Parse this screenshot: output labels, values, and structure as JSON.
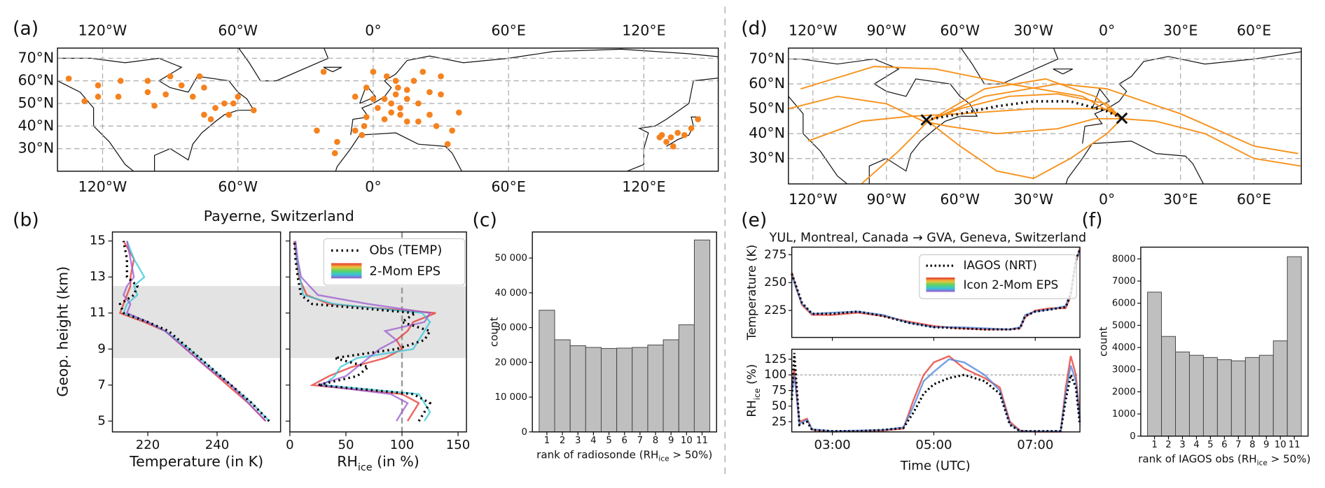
{
  "chart_data": [
    {
      "type": "map",
      "panel": "(a)",
      "xlim": [
        -140,
        153
      ],
      "ylim": [
        20,
        74.5
      ],
      "xticks": [
        {
          "value": -120,
          "label": "120°W"
        },
        {
          "value": -60,
          "label": "60°W"
        },
        {
          "value": 0,
          "label": "0°"
        },
        {
          "value": 60,
          "label": "60°E"
        },
        {
          "value": 120,
          "label": "120°E"
        }
      ],
      "yticks": [
        {
          "value": 30,
          "label": "30°N"
        },
        {
          "value": 40,
          "label": "40°N"
        },
        {
          "value": 50,
          "label": "50°N"
        },
        {
          "value": 60,
          "label": "60°N"
        },
        {
          "value": 70,
          "label": "70°N"
        }
      ],
      "color": "#f5821f",
      "x": [
        -135,
        -122,
        -122,
        -112,
        -113,
        -100,
        -97,
        -90,
        -92,
        -85,
        -80,
        -77,
        -75,
        -70,
        -66,
        -60,
        -64,
        -62,
        -75,
        -72,
        -53,
        -128,
        -100,
        -8,
        -3,
        0,
        2,
        5,
        8,
        10,
        12,
        15,
        20,
        25,
        18,
        22,
        10,
        25,
        15,
        5,
        -4,
        -8,
        -17,
        -16,
        -25,
        28,
        35,
        33,
        -3,
        12,
        20,
        30,
        -22,
        -5,
        15,
        8,
        11,
        0,
        6,
        30,
        38,
        128,
        130,
        132,
        135,
        138,
        141,
        144,
        127,
        133
      ],
      "values": [
        61,
        58,
        53,
        60,
        53,
        55,
        49,
        62,
        54,
        58,
        53,
        62,
        57,
        48,
        50,
        53,
        45,
        50,
        45,
        43,
        47,
        51,
        60,
        53,
        57,
        52,
        48,
        52,
        50,
        54,
        48,
        52,
        50,
        55,
        60,
        64,
        60,
        45,
        42,
        43,
        40,
        38,
        28,
        33,
        38,
        40,
        38,
        32,
        44,
        45,
        42,
        62,
        64,
        36,
        56,
        46,
        57,
        64,
        62,
        54,
        46,
        36,
        33,
        35,
        37,
        36,
        39,
        43,
        35,
        31
      ]
    },
    {
      "type": "profile",
      "panel": "(b)",
      "title": "Payerne, Switzerland",
      "xlabel": "Temperature (in K)",
      "ylabel": "Geop. height (km)",
      "xlim": [
        209.8,
        258.3
      ],
      "ylim": [
        4.4,
        15.5
      ],
      "xticks": [
        220,
        240
      ],
      "yticks": [
        5,
        7,
        9,
        11,
        13,
        15
      ],
      "shade": [
        8.5,
        12.5
      ],
      "heights": [
        5,
        6,
        7,
        8,
        9,
        10,
        10.5,
        11,
        11.5,
        12,
        12.5,
        13,
        14,
        15
      ],
      "series": [
        {
          "name": "Obs (TEMP)",
          "color": "#000000",
          "values": [
            255,
            250,
            244,
            238,
            232,
            226,
            220,
            213,
            212,
            216,
            217,
            214,
            214,
            213
          ]
        }
      ],
      "members": [
        {
          "color": "#e6322b",
          "values": [
            254,
            249,
            243,
            237,
            231,
            225,
            219,
            212,
            213,
            214,
            215,
            215,
            216,
            213
          ]
        },
        {
          "color": "#37c5d9",
          "values": [
            255,
            250,
            244,
            238,
            232,
            225,
            220,
            213,
            214,
            217,
            216,
            219,
            216,
            214
          ]
        },
        {
          "color": "#9b59d0",
          "values": [
            254,
            249,
            244,
            237,
            231,
            225,
            220,
            214,
            215,
            213,
            214,
            216,
            215,
            214
          ]
        }
      ]
    },
    {
      "type": "profile",
      "xlabel": {
        "pre": "RH",
        "sub": "ice",
        "post": " (in %)"
      },
      "xlim": [
        0,
        157.5
      ],
      "xticks": [
        0,
        50,
        100,
        150
      ],
      "refline": 100,
      "legend": "2-Mom EPS",
      "heights": [
        5,
        5.5,
        6,
        6.5,
        7,
        7.5,
        8,
        8.5,
        9,
        9.5,
        10,
        10.5,
        11,
        11.5,
        12,
        13,
        14,
        15
      ],
      "series": [
        {
          "name": "Obs (TEMP)",
          "color": "#000000",
          "values": [
            115,
            120,
            125,
            110,
            25,
            60,
            70,
            40,
            95,
            120,
            125,
            100,
            112,
            20,
            10,
            7,
            5,
            4
          ]
        }
      ],
      "members": [
        {
          "color": "#e6322b",
          "values": [
            105,
            110,
            115,
            100,
            20,
            35,
            55,
            85,
            100,
            95,
            105,
            110,
            130,
            35,
            15,
            8,
            6,
            4
          ]
        },
        {
          "color": "#37c5d9",
          "values": [
            120,
            125,
            120,
            115,
            30,
            40,
            45,
            60,
            110,
            115,
            120,
            125,
            118,
            40,
            12,
            9,
            6,
            5
          ]
        },
        {
          "color": "#9b59d0",
          "values": [
            95,
            100,
            105,
            90,
            25,
            50,
            60,
            70,
            80,
            95,
            85,
            120,
            125,
            70,
            25,
            10,
            7,
            5
          ]
        }
      ]
    },
    {
      "type": "bar",
      "panel": "(c)",
      "ylabel": "count",
      "xlabel": {
        "pre": "rank of radiosonde (RH",
        "sub": "ice",
        "post": " > 50%)"
      },
      "categories": [
        "1",
        "2",
        "3",
        "4",
        "5",
        "6",
        "7",
        "8",
        "9",
        "10",
        "11"
      ],
      "values": [
        35000,
        26500,
        24800,
        24300,
        24000,
        24100,
        24300,
        25000,
        26500,
        30800,
        55200
      ],
      "color": "#bfbfbf",
      "ylim": [
        0,
        57500
      ],
      "yticks": [
        0,
        {
          "value": 10000,
          "label": "10 000"
        },
        {
          "value": 20000,
          "label": "20 000"
        },
        {
          "value": 30000,
          "label": "30 000"
        },
        {
          "value": 40000,
          "label": "40 000"
        },
        {
          "value": 50000,
          "label": "50 000"
        }
      ]
    },
    {
      "type": "map",
      "panel": "(d)",
      "xlim": [
        -130,
        79.3
      ],
      "ylim": [
        19.8,
        74.4
      ],
      "xticks": [
        {
          "value": -120,
          "label": "120°W"
        },
        {
          "value": -90,
          "label": "90°W"
        },
        {
          "value": -60,
          "label": "60°W"
        },
        {
          "value": -30,
          "label": "30°W"
        },
        {
          "value": 0,
          "label": "0°"
        },
        {
          "value": 30,
          "label": "30°E"
        },
        {
          "value": 60,
          "label": "60°E"
        }
      ],
      "yticks": [
        {
          "value": 30,
          "label": "30°N"
        },
        {
          "value": 40,
          "label": "40°N"
        },
        {
          "value": 50,
          "label": "50°N"
        },
        {
          "value": 60,
          "label": "60°N"
        },
        {
          "value": 70,
          "label": "70°N"
        }
      ],
      "color": "#f7931e",
      "tracks": [
        {
          "x": [
            -73,
            -60,
            -40,
            -20,
            0,
            6
          ],
          "values": [
            45,
            50,
            55,
            56,
            52,
            46
          ]
        },
        {
          "x": [
            -75,
            -65,
            -45,
            -20,
            -5,
            6
          ],
          "values": [
            45,
            43,
            40,
            42,
            46,
            46
          ]
        },
        {
          "x": [
            -73,
            -50,
            -20,
            0,
            30,
            60,
            78
          ],
          "values": [
            45,
            55,
            60,
            58,
            48,
            35,
            32
          ]
        },
        {
          "x": [
            -122,
            -100,
            -80,
            -60,
            -30,
            0,
            6
          ],
          "values": [
            37,
            45,
            47,
            48,
            50,
            50,
            46
          ]
        },
        {
          "x": [
            -73,
            -60,
            -45,
            -30,
            -15,
            0,
            6
          ],
          "values": [
            45,
            35,
            25,
            22,
            30,
            40,
            46
          ]
        },
        {
          "x": [
            -130,
            -110,
            -90,
            -75
          ],
          "values": [
            50,
            55,
            52,
            45
          ]
        },
        {
          "x": [
            -100,
            -85,
            -73
          ],
          "values": [
            20,
            33,
            45
          ]
        },
        {
          "x": [
            -73,
            -50,
            -25,
            -5,
            6
          ],
          "values": [
            45,
            58,
            62,
            55,
            46
          ]
        },
        {
          "x": [
            6,
            20,
            40,
            60,
            79
          ],
          "values": [
            46,
            45,
            40,
            30,
            27
          ]
        },
        {
          "x": [
            -125,
            -95,
            -70,
            -40,
            -10,
            6
          ],
          "values": [
            58,
            67,
            66,
            60,
            55,
            46
          ]
        }
      ],
      "route": {
        "x": [
          -73.7,
          -60,
          -45,
          -30,
          -15,
          0,
          6.1
        ],
        "values": [
          45.5,
          48,
          51,
          53,
          53,
          49,
          46.2
        ]
      }
    },
    {
      "type": "line",
      "panel": "(e)",
      "title": "YUL, Montreal, Canada → GVA, Geneva, Switzerland",
      "ylabel": "Temperature (K)",
      "ylim": [
        200.8,
        281.8
      ],
      "yticks": [
        225,
        250,
        275
      ],
      "legend": "Icon 2-Mom EPS",
      "x": [
        2.2,
        2.3,
        2.4,
        2.6,
        3.0,
        3.5,
        4.0,
        4.5,
        5.0,
        5.5,
        6.0,
        6.5,
        6.7,
        6.8,
        7.0,
        7.3,
        7.6,
        7.7,
        7.8,
        7.88
      ],
      "series": [
        {
          "name": "IAGOS (NRT)",
          "color": "#000000",
          "values": [
            258,
            245,
            232,
            222,
            222,
            224,
            220,
            214,
            210,
            209,
            208,
            208,
            209,
            220,
            224,
            226,
            228,
            240,
            270,
            280
          ]
        }
      ],
      "members": [
        {
          "color": "#e6322b",
          "values": [
            259,
            244,
            230,
            221,
            221,
            223,
            220,
            215,
            211,
            209,
            208,
            208,
            209,
            219,
            225,
            227,
            227,
            238,
            268,
            281
          ]
        },
        {
          "color": "#4a7fd9",
          "values": [
            257,
            243,
            231,
            222,
            223,
            224,
            221,
            214,
            210,
            210,
            209,
            208,
            210,
            221,
            224,
            226,
            229,
            242,
            271,
            279
          ]
        }
      ]
    },
    {
      "type": "line",
      "ylabel": {
        "pre": "RH",
        "sub": "ice",
        "post": " (%)"
      },
      "xlabel": "Time (UTC)",
      "xlim": [
        2.2,
        7.88
      ],
      "xticks": [
        {
          "value": 3,
          "label": "03:00"
        },
        {
          "value": 5,
          "label": "05:00"
        },
        {
          "value": 7,
          "label": "07:00"
        }
      ],
      "ylim": [
        8.8,
        141
      ],
      "yticks": [
        25,
        50,
        75,
        100,
        125
      ],
      "refline": 100,
      "x": [
        2.2,
        2.25,
        2.35,
        2.5,
        2.6,
        3.0,
        3.5,
        4.0,
        4.4,
        4.6,
        4.8,
        5.0,
        5.3,
        5.6,
        6.0,
        6.3,
        6.5,
        6.7,
        7.0,
        7.5,
        7.6,
        7.7,
        7.8,
        7.88
      ],
      "series": [
        {
          "name": "IAGOS (NRT)",
          "color": "#000000",
          "values": [
            60,
            135,
            20,
            25,
            12,
            10,
            10,
            12,
            15,
            40,
            70,
            85,
            95,
            100,
            90,
            70,
            20,
            10,
            10,
            10,
            60,
            100,
            80,
            20
          ]
        }
      ],
      "members": [
        {
          "color": "#e6322b",
          "values": [
            80,
            110,
            25,
            30,
            12,
            9,
            10,
            11,
            14,
            60,
            100,
            120,
            130,
            110,
            95,
            80,
            25,
            11,
            9,
            9,
            80,
            130,
            100,
            30
          ]
        },
        {
          "color": "#4a7fd9",
          "values": [
            70,
            100,
            22,
            28,
            13,
            10,
            11,
            12,
            16,
            50,
            90,
            105,
            125,
            120,
            100,
            75,
            22,
            10,
            10,
            10,
            70,
            115,
            90,
            25
          ]
        }
      ]
    },
    {
      "type": "bar",
      "panel": "(f)",
      "ylabel": "count",
      "xlabel": {
        "pre": "rank of IAGOS obs (RH",
        "sub": "ice",
        "post": " > 50%)"
      },
      "categories": [
        "1",
        "2",
        "3",
        "4",
        "5",
        "6",
        "7",
        "8",
        "9",
        "10",
        "11"
      ],
      "values": [
        6500,
        4500,
        3800,
        3650,
        3550,
        3450,
        3400,
        3550,
        3650,
        4300,
        8100
      ],
      "color": "#bfbfbf",
      "ylim": [
        0,
        8530
      ],
      "yticks": [
        0,
        1000,
        2000,
        3000,
        4000,
        5000,
        6000,
        7000,
        8000
      ]
    }
  ]
}
